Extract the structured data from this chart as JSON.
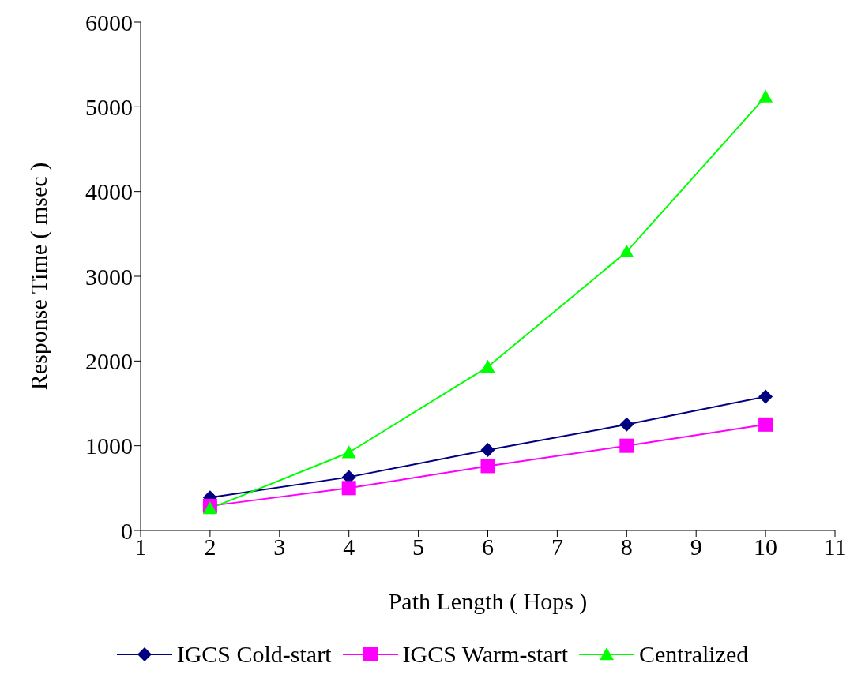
{
  "chart_data": {
    "type": "line",
    "xlabel": "Path Length ( Hops )",
    "ylabel": "Response Time ( msec )",
    "x": [
      2,
      4,
      6,
      8,
      10
    ],
    "series": [
      {
        "name": "IGCS Cold-start",
        "color": "#000080",
        "marker": "diamond",
        "values": [
          390,
          630,
          950,
          1250,
          1580
        ]
      },
      {
        "name": "IGCS Warm-start",
        "color": "#ff00ff",
        "marker": "square",
        "values": [
          290,
          500,
          760,
          1000,
          1250
        ]
      },
      {
        "name": "Centralized",
        "color": "#00ff00",
        "marker": "triangle",
        "values": [
          260,
          920,
          1930,
          3290,
          5120
        ]
      }
    ],
    "xlim": [
      1,
      11
    ],
    "xticks": [
      1,
      2,
      3,
      4,
      5,
      6,
      7,
      8,
      9,
      10,
      11
    ],
    "ylim": [
      0,
      6000
    ],
    "yticks": [
      0,
      1000,
      2000,
      3000,
      4000,
      5000,
      6000
    ],
    "grid": false,
    "legend": "bottom",
    "line_style": "solid"
  }
}
